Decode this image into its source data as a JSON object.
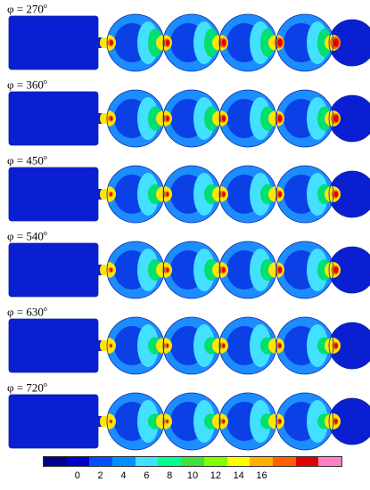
{
  "panels": [
    {
      "label": "φ = 270",
      "superscript": "o",
      "intensity": 1.0
    },
    {
      "label": "φ = 360",
      "superscript": "o",
      "intensity": 0.85
    },
    {
      "label": "φ = 450",
      "superscript": "o",
      "intensity": 0.7
    },
    {
      "label": "φ = 540",
      "superscript": "o",
      "intensity": 0.75
    },
    {
      "label": "φ = 630",
      "superscript": "o",
      "intensity": 0.6
    },
    {
      "label": "φ = 720",
      "superscript": "o",
      "intensity": 0.55
    }
  ],
  "colorbar": {
    "colors": [
      "#00008b",
      "#0000cd",
      "#0050ff",
      "#0090ff",
      "#40e0ff",
      "#00ff90",
      "#40e040",
      "#80ff00",
      "#ffff00",
      "#ffb000",
      "#ff6000",
      "#e00000",
      "#ff80c0"
    ],
    "ticks": [
      "0",
      "2",
      "4",
      "6",
      "8",
      "10",
      "12",
      "14",
      "16"
    ]
  }
}
